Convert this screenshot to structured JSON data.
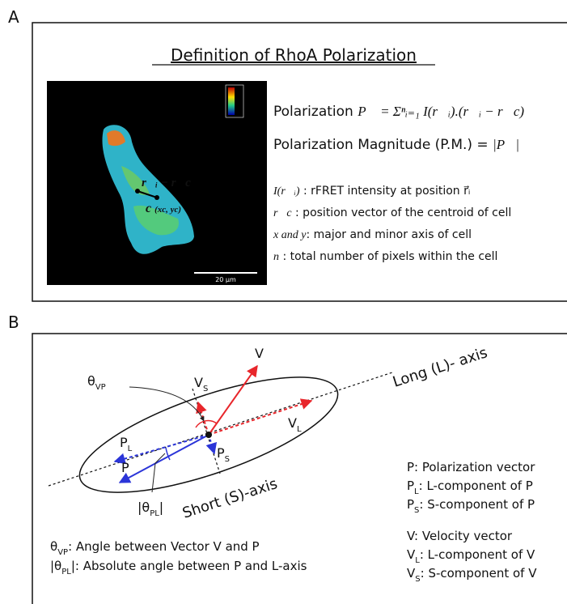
{
  "panel_a": {
    "letter": "A",
    "title": "Definition of RhoA Polarization",
    "image": {
      "vector_label": "r⃗ᵢ − r⃗c",
      "centroid_label": "c",
      "centroid_coords": "(xc, yc)",
      "scale_bar": "20 µm"
    },
    "equations": [
      {
        "name": "Polarization",
        "formula": "P⃗ = Σⁿᵢ₌₁ I(r⃗ᵢ).(r⃗ᵢ − r⃗c)"
      },
      {
        "name": "Polarization Magnitude (P.M.) =",
        "formula": "|P⃗|"
      }
    ],
    "definitions": [
      {
        "symbol": "I(r⃗ᵢ)",
        "text": " : rFRET intensity at position r⃗ᵢ"
      },
      {
        "symbol": "r⃗c",
        "text": " : position vector of the centroid of cell"
      },
      {
        "symbol": "x and y",
        "text": ": major and minor axis of cell"
      },
      {
        "symbol": "n",
        "text": " : total number of pixels within the cell"
      }
    ]
  },
  "panel_b": {
    "letter": "B",
    "long_axis": "Long (L)- axis",
    "short_axis": "Short (S)-axis",
    "labels": {
      "v": "V",
      "vs": {
        "main": "V",
        "sub": "S"
      },
      "vl": {
        "main": "V",
        "sub": "L"
      },
      "pl": {
        "main": "P",
        "sub": "L"
      },
      "p": "P",
      "ps": {
        "main": "P",
        "sub": "S"
      },
      "theta_vp": {
        "main": "θ",
        "sub": "VP"
      },
      "theta_pl": {
        "main": "|θ",
        "sub": "PL",
        "end": "|"
      }
    },
    "legend": [
      {
        "main": "P",
        "sub": "",
        "text": ":  Polarization vector"
      },
      {
        "main": "P",
        "sub": "L",
        "text": ": L-component of P"
      },
      {
        "main": "P",
        "sub": "S",
        "text": ": S-component of P"
      },
      {
        "main": "V",
        "sub": "",
        "text": ":  Velocity vector"
      },
      {
        "main": "V",
        "sub": "L",
        "text": ": L-component of V"
      },
      {
        "main": "V",
        "sub": "S",
        "text": ": S-component of V"
      }
    ],
    "notes": [
      {
        "main": "θ",
        "sub": "VP",
        "end": "",
        "text": ":   Angle between Vector V and P"
      },
      {
        "main": "|θ",
        "sub": "PL",
        "end": "|",
        "text": ": Absolute angle between P and L-axis"
      }
    ]
  }
}
